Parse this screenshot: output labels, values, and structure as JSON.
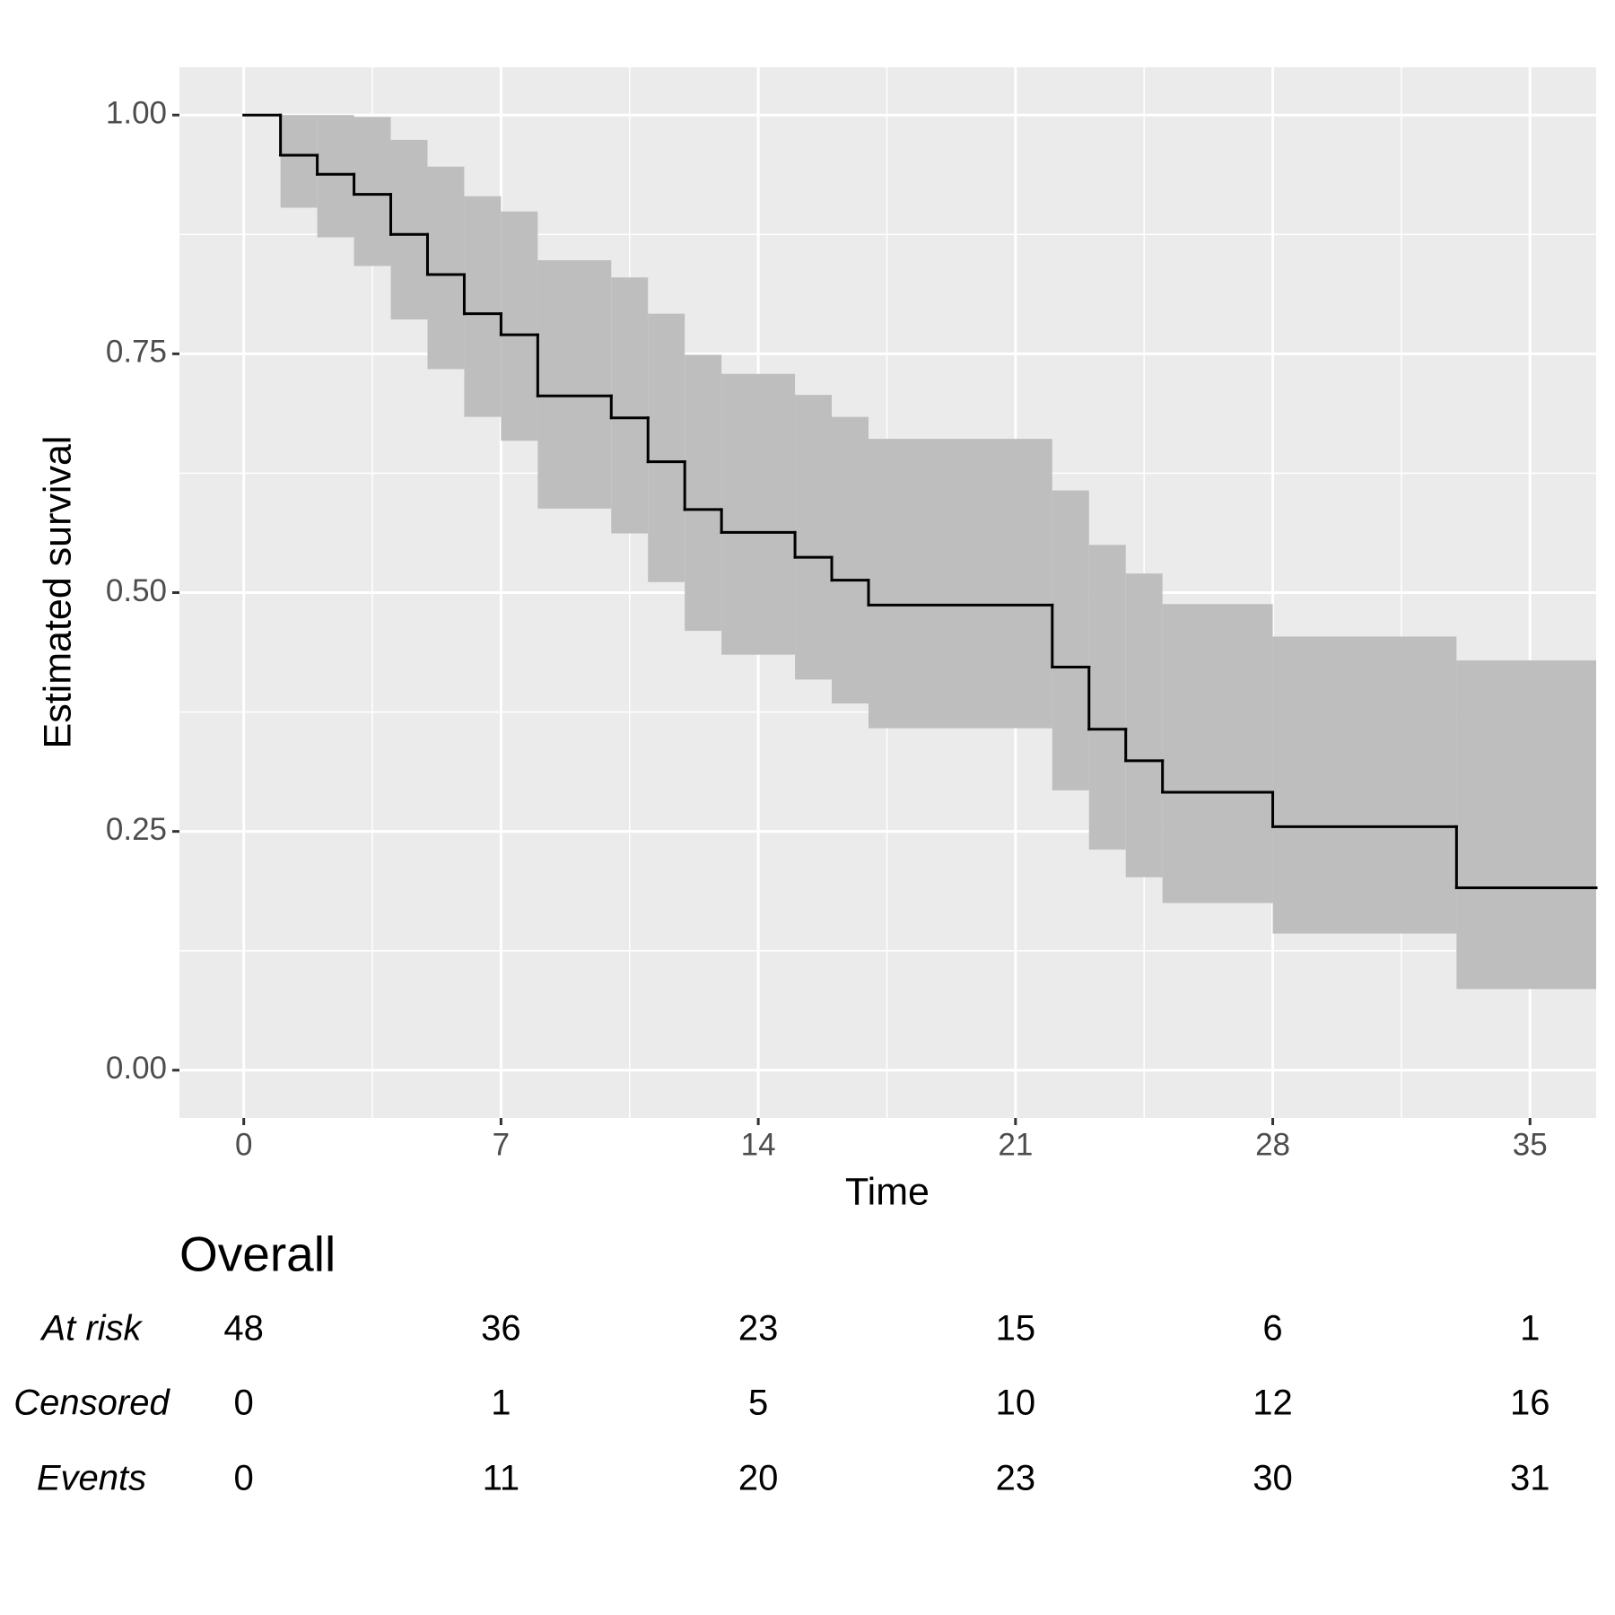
{
  "chart_data": {
    "type": "survival",
    "x_label": "Time",
    "y_label": "Estimated survival",
    "x": [
      0,
      1,
      2,
      3,
      4,
      5,
      6,
      7,
      8,
      10,
      11,
      12,
      13,
      15,
      16,
      17,
      22,
      23,
      24,
      25,
      28,
      33
    ],
    "series": [
      {
        "name": "Overall",
        "color": "#000000",
        "values": [
          1.0,
          0.958,
          0.938,
          0.917,
          0.875,
          0.833,
          0.792,
          0.77,
          0.706,
          0.683,
          0.637,
          0.587,
          0.563,
          0.537,
          0.513,
          0.487,
          0.422,
          0.357,
          0.324,
          0.291,
          0.255,
          0.191
        ],
        "upper": [
          1.0,
          1.0,
          1.0,
          0.998,
          0.974,
          0.946,
          0.915,
          0.899,
          0.848,
          0.83,
          0.792,
          0.749,
          0.729,
          0.707,
          0.684,
          0.661,
          0.607,
          0.55,
          0.52,
          0.488,
          0.454,
          0.429
        ],
        "lower": [
          1.0,
          0.903,
          0.872,
          0.842,
          0.786,
          0.734,
          0.684,
          0.659,
          0.588,
          0.562,
          0.511,
          0.46,
          0.435,
          0.409,
          0.384,
          0.358,
          0.293,
          0.231,
          0.202,
          0.175,
          0.143,
          0.085
        ],
        "band_color": "#bebebe"
      }
    ],
    "xlim": [
      -1.75,
      36.8
    ],
    "ylim": [
      -0.05,
      1.05
    ],
    "xticks": [
      0,
      7,
      14,
      21,
      28,
      35
    ],
    "yticks": [
      {
        "value": 0,
        "label": "0.00"
      },
      {
        "value": 0.25,
        "label": "0.25"
      },
      {
        "value": 0.5,
        "label": "0.50"
      },
      {
        "value": 0.75,
        "label": "0.75"
      },
      {
        "value": 1,
        "label": "1.00"
      }
    ],
    "grid": true
  },
  "risk_table": {
    "title": "Overall",
    "rows": [
      {
        "label": "At risk",
        "values": [
          48,
          36,
          23,
          15,
          6,
          1
        ]
      },
      {
        "label": "Censored",
        "values": [
          0,
          1,
          5,
          10,
          12,
          16
        ]
      },
      {
        "label": "Events",
        "values": [
          0,
          11,
          20,
          23,
          30,
          31
        ]
      }
    ]
  }
}
